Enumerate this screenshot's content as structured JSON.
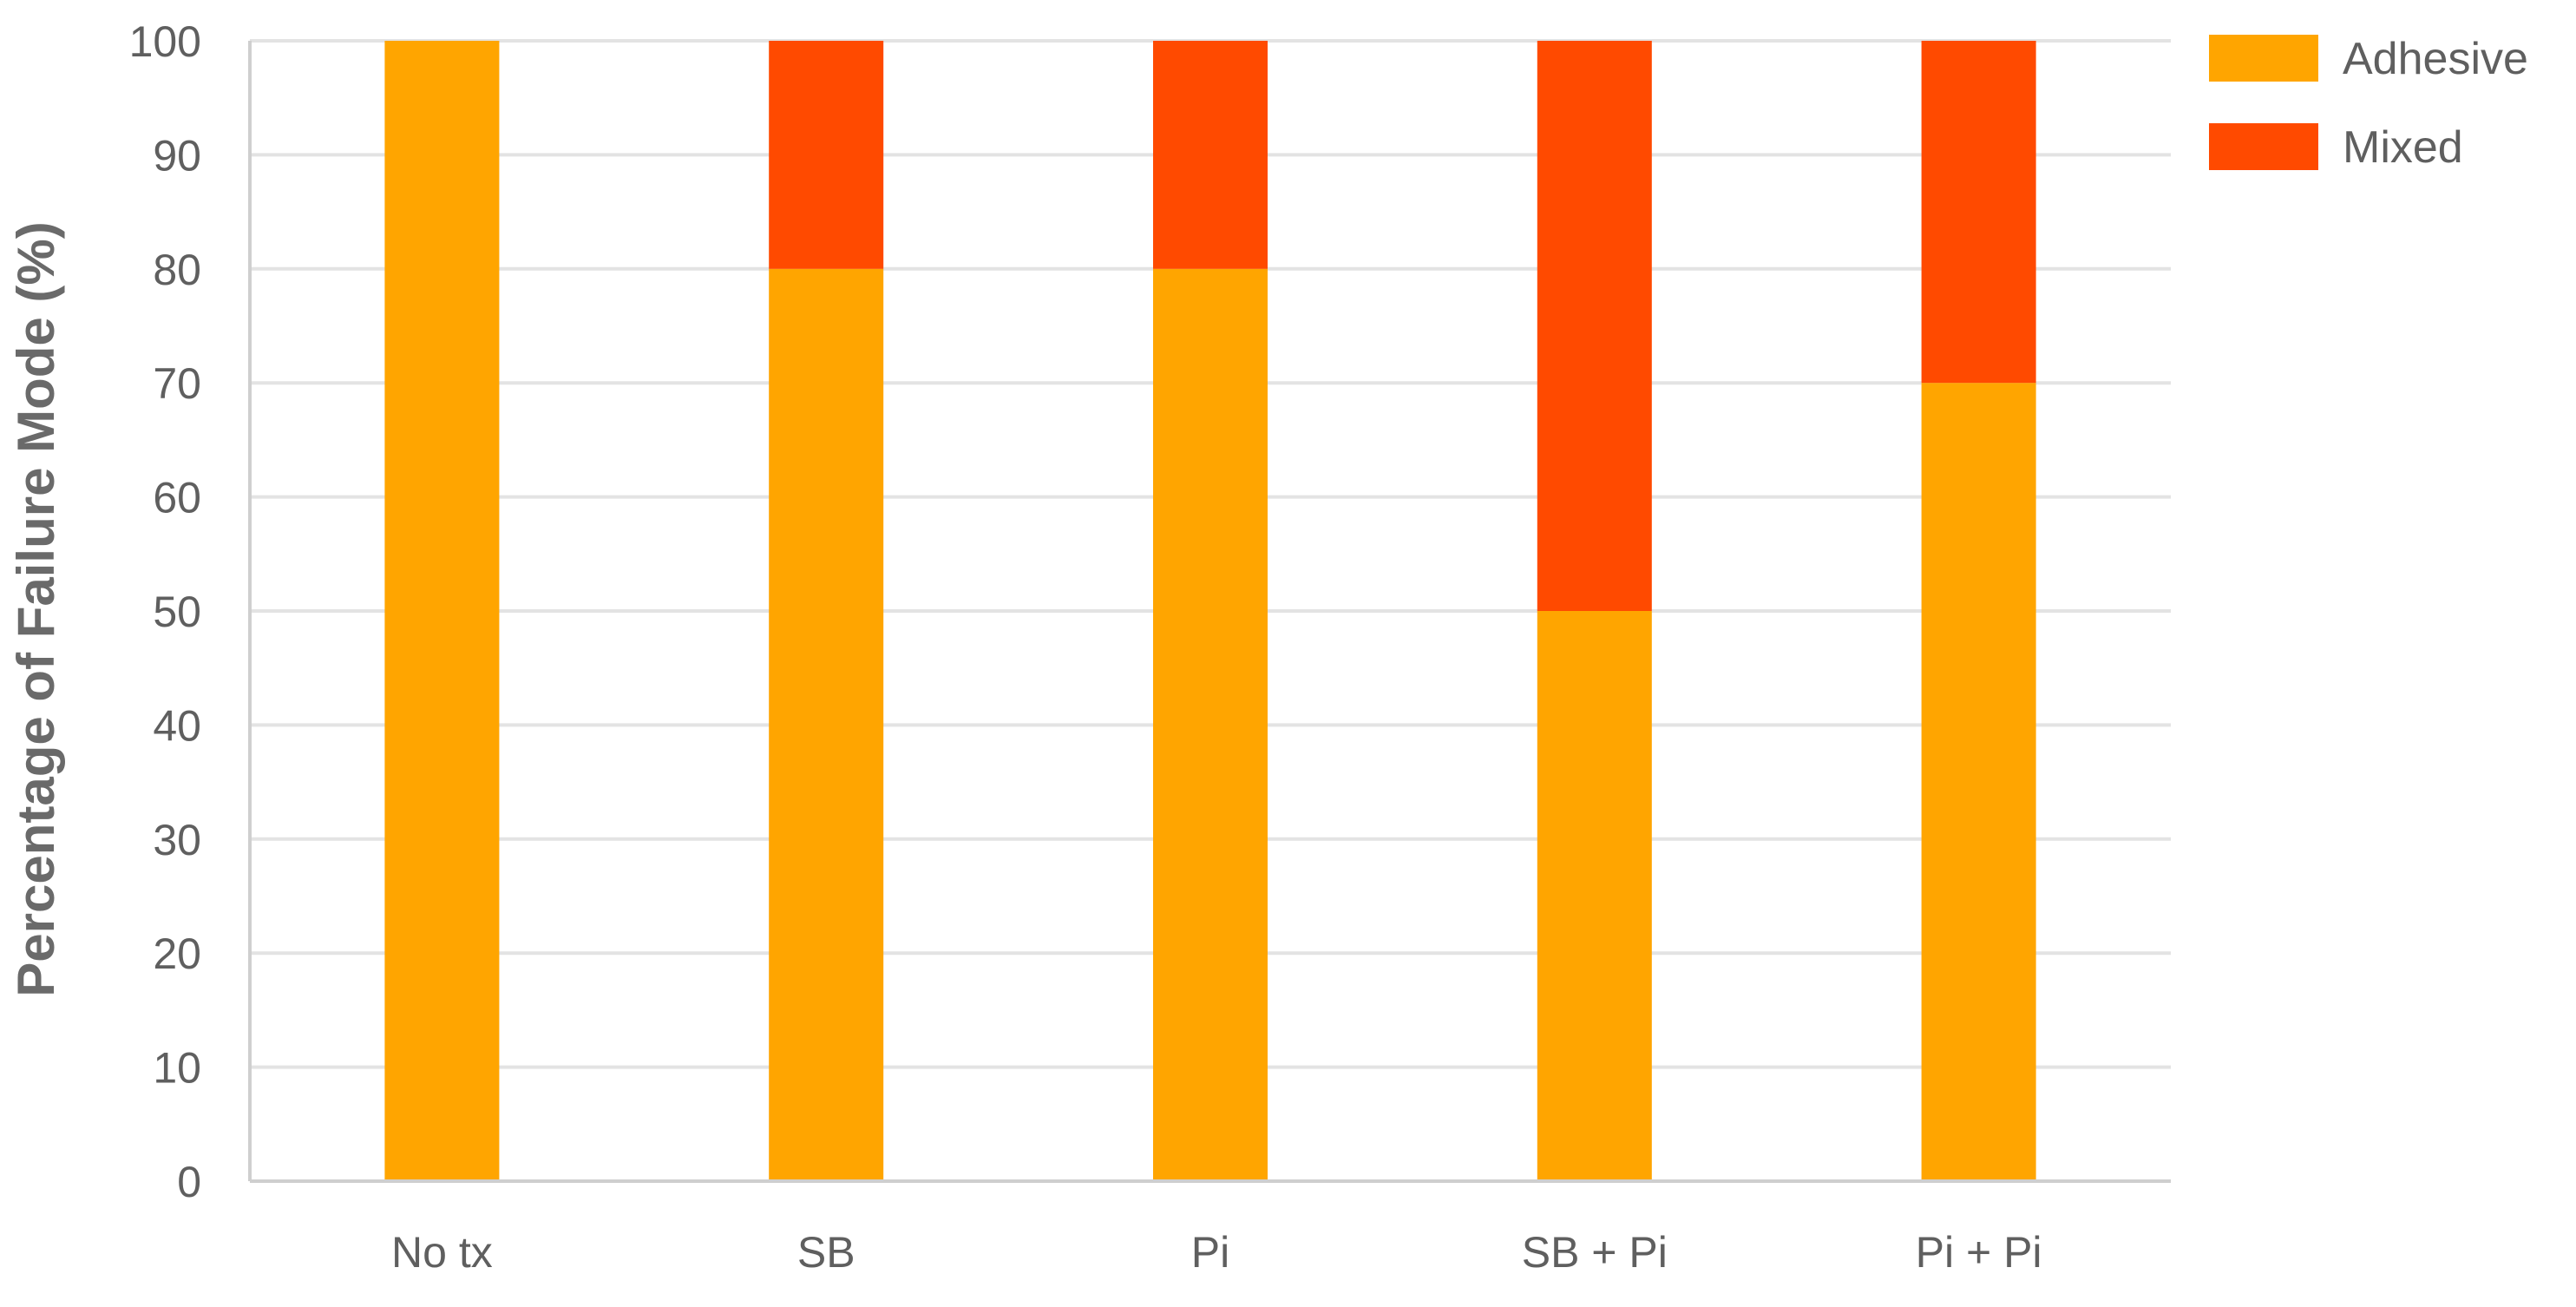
{
  "chart_data": {
    "type": "bar",
    "stacked": true,
    "title": "",
    "xlabel": "",
    "ylabel": "Percentage of Failure Mode (%)",
    "ylim": [
      0,
      100
    ],
    "yticks": [
      0,
      10,
      20,
      30,
      40,
      50,
      60,
      70,
      80,
      90,
      100
    ],
    "grid": true,
    "legend_position": "top-right",
    "categories": [
      "No tx",
      "SB",
      "Pi",
      "SB + Pi",
      "Pi + Pi"
    ],
    "series": [
      {
        "name": "Adhesive",
        "color": "#FFA500",
        "values": [
          100,
          80,
          80,
          50,
          70
        ]
      },
      {
        "name": "Mixed",
        "color": "#FF4A00",
        "values": [
          0,
          20,
          20,
          50,
          30
        ]
      }
    ]
  }
}
